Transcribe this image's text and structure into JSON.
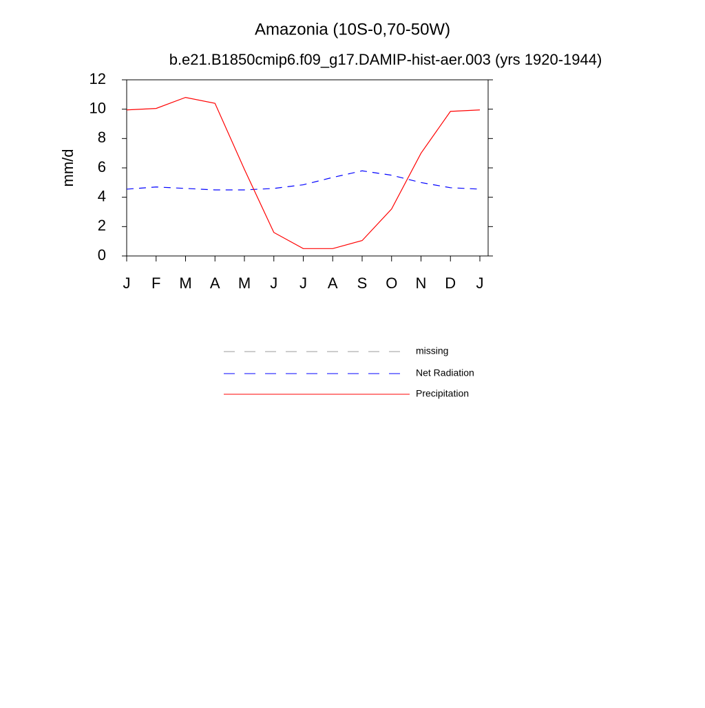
{
  "chart_data": {
    "type": "line",
    "title": "Amazonia (10S-0,70-50W)",
    "subtitle": "b.e21.B1850cmip6.f09_g17.DAMIP-hist-aer.003 (yrs 1920-1944)",
    "y_label": "mm/d",
    "categories": [
      "J",
      "F",
      "M",
      "A",
      "M",
      "J",
      "J",
      "A",
      "S",
      "O",
      "N",
      "D",
      "J"
    ],
    "ylim": [
      0,
      12
    ],
    "yticks": [
      0,
      2,
      4,
      6,
      8,
      10,
      12
    ],
    "series": [
      {
        "name": "missing",
        "color": "#999999",
        "dash": true,
        "values": [
          null,
          null,
          null,
          null,
          null,
          null,
          null,
          null,
          null,
          null,
          null,
          null,
          null
        ]
      },
      {
        "name": "Net Radiation",
        "color": "#0000ff",
        "dash": true,
        "values": [
          4.55,
          4.7,
          4.6,
          4.5,
          4.5,
          4.6,
          4.85,
          5.35,
          5.8,
          5.5,
          5.0,
          4.65,
          4.55
        ]
      },
      {
        "name": "Precipitation",
        "color": "#ff0000",
        "dash": false,
        "values": [
          9.95,
          10.05,
          10.8,
          10.4,
          5.9,
          1.6,
          0.5,
          0.5,
          1.05,
          3.2,
          7.0,
          9.85,
          9.95
        ]
      }
    ]
  }
}
